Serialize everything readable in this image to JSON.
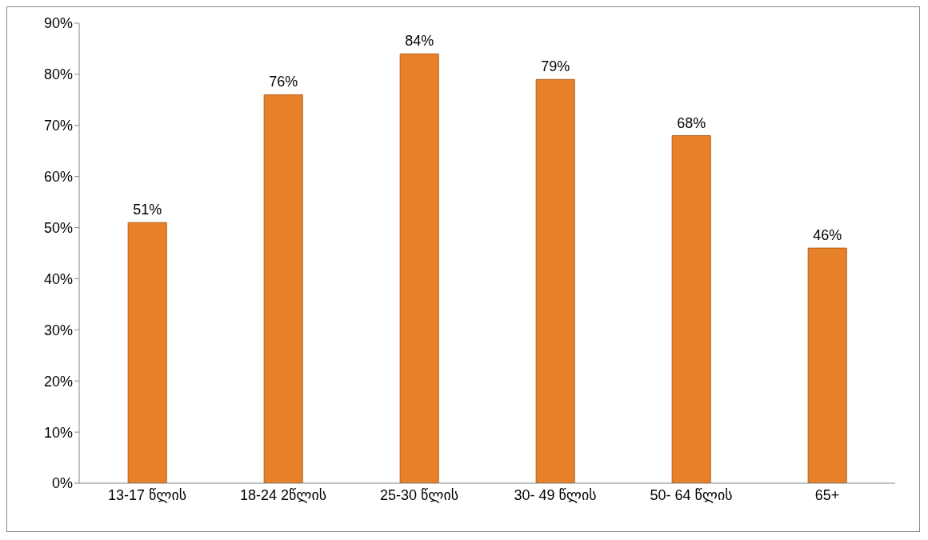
{
  "chart_data": {
    "type": "bar",
    "categories": [
      "13-17 წლის",
      "18-24 2წლის",
      "25-30 წლის",
      "30- 49 წლის",
      "50- 64 წლის",
      "65+"
    ],
    "values": [
      51,
      76,
      84,
      79,
      68,
      46
    ],
    "color": "#e8822a",
    "value_labels": [
      "51%",
      "76%",
      "84%",
      "79%",
      "68%",
      "46%"
    ],
    "ylim": [
      0,
      90
    ],
    "yticks": [
      {
        "value": 0,
        "label": "0%"
      },
      {
        "value": 10,
        "label": "10%"
      },
      {
        "value": 20,
        "label": "20%"
      },
      {
        "value": 30,
        "label": "30%"
      },
      {
        "value": 40,
        "label": "40%"
      },
      {
        "value": 50,
        "label": "50%"
      },
      {
        "value": 60,
        "label": "60%"
      },
      {
        "value": 70,
        "label": "70%"
      },
      {
        "value": 80,
        "label": "80%"
      },
      {
        "value": 90,
        "label": "90%"
      }
    ],
    "grid": false,
    "legend": false
  }
}
